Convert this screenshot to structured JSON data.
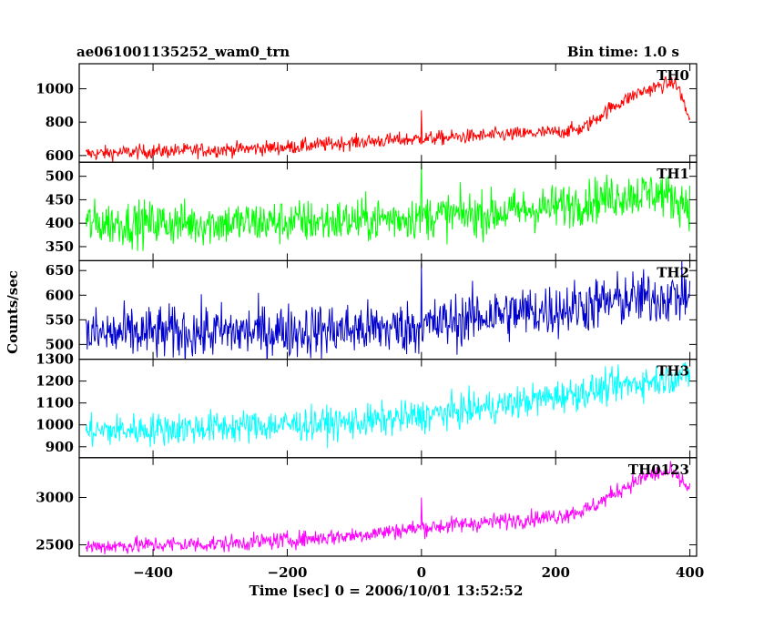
{
  "header": {
    "title": "ae061001135252_wam0_trn",
    "bin_time": "Bin time: 1.0 s"
  },
  "chart_data": {
    "type": "line",
    "title": "ae061001135252_wam0_trn",
    "subtitle": "Bin time: 1.0 s",
    "xlabel": "Time [sec] 0 = 2006/10/01 13:52:52",
    "ylabel": "Counts/sec",
    "xlim": [
      -510,
      410
    ],
    "x_ticks": [
      -400,
      -200,
      0,
      200,
      400
    ],
    "x_tick_labels": [
      "−400",
      "−200",
      "0",
      "200",
      "400"
    ],
    "grid": false,
    "legend": "none",
    "series": [
      {
        "name": "TH0",
        "color": "#ff0000",
        "ylim": [
          560,
          1150
        ],
        "y_ticks": [
          600,
          800,
          1000
        ],
        "y_tick_labels": [
          "600",
          "800",
          "1000"
        ],
        "noise": 22,
        "trend": [
          [
            -500,
            610
          ],
          [
            -400,
            625
          ],
          [
            -300,
            635
          ],
          [
            -200,
            650
          ],
          [
            -100,
            680
          ],
          [
            0,
            700
          ],
          [
            100,
            720
          ],
          [
            200,
            740
          ],
          [
            240,
            760
          ],
          [
            280,
            880
          ],
          [
            320,
            970
          ],
          [
            350,
            1010
          ],
          [
            375,
            1040
          ],
          [
            385,
            990
          ],
          [
            395,
            860
          ],
          [
            400,
            820
          ]
        ],
        "spikes": [
          [
            0,
            870
          ]
        ]
      },
      {
        "name": "TH1",
        "color": "#00ff00",
        "ylim": [
          320,
          530
        ],
        "y_ticks": [
          350,
          400,
          450,
          500
        ],
        "y_tick_labels": [
          "350",
          "400",
          "450",
          "500"
        ],
        "noise": 24,
        "trend": [
          [
            -500,
            400
          ],
          [
            -300,
            400
          ],
          [
            -100,
            405
          ],
          [
            0,
            415
          ],
          [
            100,
            420
          ],
          [
            200,
            435
          ],
          [
            300,
            460
          ],
          [
            350,
            465
          ],
          [
            380,
            450
          ],
          [
            400,
            440
          ]
        ],
        "spikes": [
          [
            0,
            525
          ]
        ]
      },
      {
        "name": "TH2",
        "color": "#0000cc",
        "ylim": [
          470,
          670
        ],
        "y_ticks": [
          500,
          550,
          600,
          650
        ],
        "y_tick_labels": [
          "500",
          "550",
          "600",
          "650"
        ],
        "noise": 28,
        "trend": [
          [
            -500,
            520
          ],
          [
            -300,
            525
          ],
          [
            -100,
            530
          ],
          [
            0,
            535
          ],
          [
            100,
            560
          ],
          [
            200,
            570
          ],
          [
            300,
            590
          ],
          [
            400,
            600
          ]
        ],
        "spikes": [
          [
            0,
            665
          ]
        ]
      },
      {
        "name": "TH3",
        "color": "#00ffff",
        "ylim": [
          850,
          1300
        ],
        "y_ticks": [
          900,
          1000,
          1100,
          1200,
          1300
        ],
        "y_tick_labels": [
          "900",
          "1000",
          "1100",
          "1200",
          "1300"
        ],
        "noise": 38,
        "trend": [
          [
            -500,
            970
          ],
          [
            -300,
            990
          ],
          [
            -100,
            1010
          ],
          [
            0,
            1040
          ],
          [
            100,
            1080
          ],
          [
            200,
            1130
          ],
          [
            300,
            1180
          ],
          [
            400,
            1230
          ]
        ],
        "spikes": []
      },
      {
        "name": "TH0123",
        "color": "#ff00ff",
        "ylim": [
          2380,
          3420
        ],
        "y_ticks": [
          2500,
          3000
        ],
        "y_tick_labels": [
          "2500",
          "3000"
        ],
        "noise": 45,
        "trend": [
          [
            -500,
            2480
          ],
          [
            -400,
            2500
          ],
          [
            -300,
            2510
          ],
          [
            -200,
            2550
          ],
          [
            -100,
            2600
          ],
          [
            0,
            2680
          ],
          [
            100,
            2740
          ],
          [
            200,
            2800
          ],
          [
            250,
            2880
          ],
          [
            300,
            3100
          ],
          [
            340,
            3240
          ],
          [
            370,
            3270
          ],
          [
            390,
            3160
          ],
          [
            400,
            3080
          ]
        ],
        "spikes": [
          [
            0,
            3000
          ]
        ]
      }
    ]
  }
}
